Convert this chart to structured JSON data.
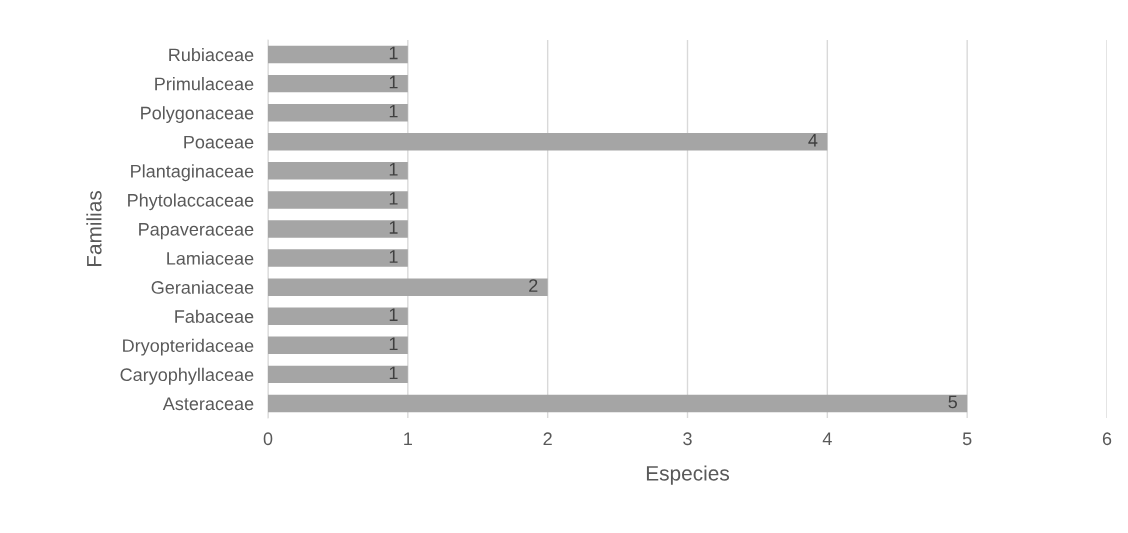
{
  "chart_data": {
    "type": "bar",
    "orientation": "horizontal",
    "xlabel": "Especies",
    "ylabel": "Familias",
    "categories": [
      "Rubiaceae",
      "Primulaceae",
      "Polygonaceae",
      "Poaceae",
      "Plantaginaceae",
      "Phytolaccaceae",
      "Papaveraceae",
      "Lamiaceae",
      "Geraniaceae",
      "Fabaceae",
      "Dryopteridaceae",
      "Caryophyllaceae",
      "Asteraceae"
    ],
    "values": [
      1,
      1,
      1,
      4,
      1,
      1,
      1,
      1,
      2,
      1,
      1,
      1,
      5
    ],
    "color": "#a5a5a5",
    "xlim": [
      0,
      6
    ],
    "xticks": [
      0,
      1,
      2,
      3,
      4,
      5,
      6
    ],
    "grid": "x",
    "data_labels": true
  }
}
